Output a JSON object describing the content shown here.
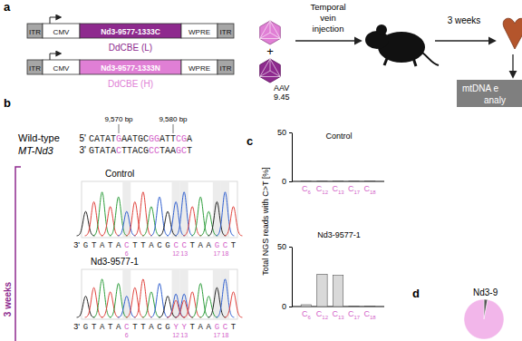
{
  "panel_labels": [
    "a",
    "b",
    "c",
    "d"
  ],
  "schematic": {
    "constructs": [
      {
        "parts": [
          "ITR",
          "CMV",
          "Nd3-9577-1333C",
          "WPRE",
          "ITR"
        ],
        "name": "DdCBE (L)",
        "color": "#8e2a8e"
      },
      {
        "parts": [
          "ITR",
          "CMV",
          "Nd3-9577-1333N",
          "WPRE",
          "ITR"
        ],
        "name": "DdCBE (H)",
        "color": "#e07fd5"
      }
    ],
    "plus": "+",
    "vector": [
      "AAV",
      "9.45"
    ],
    "injection": [
      "Temporal",
      "vein",
      "injection"
    ],
    "duration": "3 weeks",
    "analysis": [
      "mtDNA e",
      "analy"
    ]
  },
  "sequence": {
    "name": "Wild-type",
    "gene": "MT-Nd3",
    "positions": [
      {
        "label": "9,570 bp",
        "base": 6
      },
      {
        "label": "9,580 bp",
        "base": 16
      }
    ],
    "top": {
      "end": "5'",
      "bases": "CATATGAATGCGGATTCGA"
    },
    "bottom": {
      "end": "3'",
      "bases": "GTATACTTACGCCTAAGCT"
    },
    "highlight": [
      6,
      12,
      13,
      17,
      18
    ],
    "highlight_color": "#d35fc8"
  },
  "chromatograms": {
    "group": "3 weeks",
    "traces": [
      {
        "title": "Control",
        "end": "3'",
        "bases": "GTATACTTACGCCTAAGCT",
        "numbers": [
          6,
          12,
          13,
          17,
          18
        ]
      },
      {
        "title": "Nd3-9577-1",
        "end": "3'",
        "bases": "GTATACTTACGYYTAAGCT",
        "numbers": [
          6,
          12,
          13,
          17,
          18
        ]
      }
    ]
  },
  "chart_data": [
    {
      "type": "bar",
      "title": "Control",
      "y_label": "Total NGS reads with C>T [%]",
      "categories": [
        "C6",
        "C12",
        "C13",
        "C17",
        "C18"
      ],
      "values": [
        0.3,
        0.3,
        0.3,
        0.3,
        0.3
      ],
      "color": "#d9d9d9",
      "ylim": [
        0,
        50
      ],
      "yticks": [
        0,
        50
      ]
    },
    {
      "type": "bar",
      "title": "Nd3-9577-1",
      "categories": [
        "C6",
        "C12",
        "C13",
        "C17",
        "C18"
      ],
      "values": [
        1.5,
        27,
        26,
        0.3,
        0.3
      ],
      "color": "#d9d9d9",
      "ylim": [
        0,
        50
      ],
      "yticks": [
        0,
        50
      ]
    },
    {
      "type": "pie",
      "title": "Nd3-9",
      "values": [
        3,
        97
      ],
      "colors": [
        "#555555",
        "#f2b6ea"
      ]
    }
  ]
}
